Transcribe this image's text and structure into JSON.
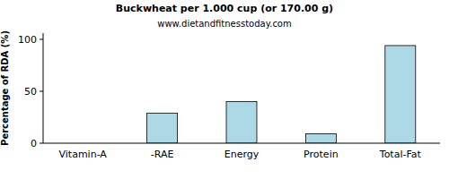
{
  "chart_data": {
    "type": "bar",
    "title": "Buckwheat per 1.000 cup (or 170.00 g)",
    "subtitle": "www.dietandfitnesstoday.com",
    "ylabel": "Percentage of RDA (%)",
    "categories": [
      "Vitamin-A",
      "-RAE",
      "Energy",
      "Protein",
      "Total-Fat"
    ],
    "values": [
      0,
      29,
      40,
      9,
      94
    ],
    "color": "#add8e6",
    "ylim": [
      0,
      106
    ],
    "yticks": [
      0,
      50,
      100
    ],
    "grid": false
  }
}
